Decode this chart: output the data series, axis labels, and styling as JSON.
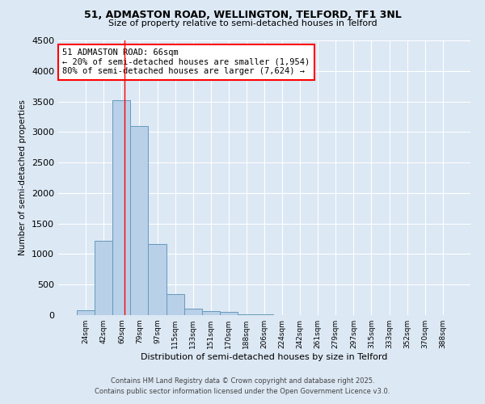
{
  "title1": "51, ADMASTON ROAD, WELLINGTON, TELFORD, TF1 3NL",
  "title2": "Size of property relative to semi-detached houses in Telford",
  "xlabel": "Distribution of semi-detached houses by size in Telford",
  "ylabel": "Number of semi-detached properties",
  "bar_labels": [
    "24sqm",
    "42sqm",
    "60sqm",
    "79sqm",
    "97sqm",
    "115sqm",
    "133sqm",
    "151sqm",
    "170sqm",
    "188sqm",
    "206sqm",
    "224sqm",
    "242sqm",
    "261sqm",
    "279sqm",
    "297sqm",
    "315sqm",
    "333sqm",
    "352sqm",
    "370sqm",
    "388sqm"
  ],
  "bar_values": [
    75,
    1220,
    3520,
    3100,
    1170,
    340,
    100,
    60,
    55,
    10,
    10,
    5,
    5,
    5,
    5,
    5,
    5,
    5,
    5,
    5,
    5
  ],
  "bar_color": "#b8d0e8",
  "bar_edge_color": "#6699bb",
  "background_color": "#dce8f4",
  "red_line_x": 2.15,
  "annotation_text": "51 ADMASTON ROAD: 66sqm\n← 20% of semi-detached houses are smaller (1,954)\n80% of semi-detached houses are larger (7,624) →",
  "annotation_box_color": "white",
  "annotation_box_edge": "red",
  "ylim": [
    0,
    4500
  ],
  "yticks": [
    0,
    500,
    1000,
    1500,
    2000,
    2500,
    3000,
    3500,
    4000,
    4500
  ],
  "footer1": "Contains HM Land Registry data © Crown copyright and database right 2025.",
  "footer2": "Contains public sector information licensed under the Open Government Licence v3.0."
}
